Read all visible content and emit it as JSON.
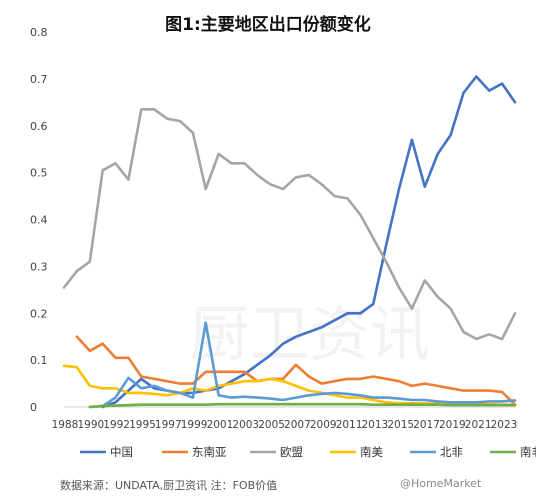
{
  "chart_data": {
    "type": "line",
    "title": "图1:主要地区出口份额变化",
    "ylim": [
      0,
      0.8
    ],
    "yticks": [
      "0",
      "0.1",
      "0.2",
      "0.3",
      "0.4",
      "0.5",
      "0.6",
      "0.7",
      "0.8"
    ],
    "xlim": [
      1988,
      2023
    ],
    "xticks": [
      "1988",
      "1990",
      "1992",
      "1995",
      "1997",
      "1999",
      "2001",
      "2003",
      "2005",
      "2007",
      "2009",
      "2011",
      "2013",
      "2015",
      "2017",
      "2019",
      "2021",
      "2023"
    ],
    "grid": false,
    "legend_position": "bottom",
    "series": [
      {
        "name": "中国",
        "color": "#4472C4",
        "points": [
          [
            1991,
            0.0
          ],
          [
            1992,
            0.01
          ],
          [
            1993,
            0.035
          ],
          [
            1994,
            0.06
          ],
          [
            1995,
            0.04
          ],
          [
            1996,
            0.035
          ],
          [
            1997,
            0.03
          ],
          [
            1998,
            0.03
          ],
          [
            1999,
            0.035
          ],
          [
            2000,
            0.04
          ],
          [
            2001,
            0.055
          ],
          [
            2002,
            0.07
          ],
          [
            2003,
            0.09
          ],
          [
            2004,
            0.11
          ],
          [
            2005,
            0.135
          ],
          [
            2006,
            0.15
          ],
          [
            2007,
            0.16
          ],
          [
            2008,
            0.17
          ],
          [
            2009,
            0.185
          ],
          [
            2010,
            0.2
          ],
          [
            2011,
            0.2
          ],
          [
            2012,
            0.22
          ],
          [
            2013,
            0.345
          ],
          [
            2014,
            0.465
          ],
          [
            2015,
            0.57
          ],
          [
            2016,
            0.47
          ],
          [
            2017,
            0.54
          ],
          [
            2018,
            0.58
          ],
          [
            2019,
            0.67
          ],
          [
            2020,
            0.705
          ],
          [
            2021,
            0.675
          ],
          [
            2022,
            0.69
          ],
          [
            2023,
            0.65
          ]
        ]
      },
      {
        "name": "东南亚",
        "color": "#ED7D31",
        "points": [
          [
            1989,
            0.15
          ],
          [
            1990,
            0.12
          ],
          [
            1991,
            0.135
          ],
          [
            1992,
            0.105
          ],
          [
            1993,
            0.105
          ],
          [
            1994,
            0.065
          ],
          [
            1995,
            0.06
          ],
          [
            1996,
            0.055
          ],
          [
            1997,
            0.05
          ],
          [
            1998,
            0.05
          ],
          [
            1999,
            0.075
          ],
          [
            2000,
            0.075
          ],
          [
            2001,
            0.075
          ],
          [
            2002,
            0.075
          ],
          [
            2003,
            0.055
          ],
          [
            2004,
            0.06
          ],
          [
            2005,
            0.06
          ],
          [
            2006,
            0.09
          ],
          [
            2007,
            0.065
          ],
          [
            2008,
            0.05
          ],
          [
            2009,
            0.055
          ],
          [
            2010,
            0.06
          ],
          [
            2011,
            0.06
          ],
          [
            2012,
            0.065
          ],
          [
            2013,
            0.06
          ],
          [
            2014,
            0.055
          ],
          [
            2015,
            0.045
          ],
          [
            2016,
            0.05
          ],
          [
            2017,
            0.045
          ],
          [
            2018,
            0.04
          ],
          [
            2019,
            0.035
          ],
          [
            2020,
            0.035
          ],
          [
            2021,
            0.035
          ],
          [
            2022,
            0.032
          ],
          [
            2023,
            0.005
          ]
        ]
      },
      {
        "name": "欧盟",
        "color": "#A5A5A5",
        "points": [
          [
            1988,
            0.255
          ],
          [
            1989,
            0.29
          ],
          [
            1990,
            0.31
          ],
          [
            1991,
            0.505
          ],
          [
            1992,
            0.52
          ],
          [
            1993,
            0.485
          ],
          [
            1994,
            0.635
          ],
          [
            1995,
            0.635
          ],
          [
            1996,
            0.615
          ],
          [
            1997,
            0.61
          ],
          [
            1998,
            0.585
          ],
          [
            1999,
            0.465
          ],
          [
            2000,
            0.54
          ],
          [
            2001,
            0.52
          ],
          [
            2002,
            0.52
          ],
          [
            2003,
            0.495
          ],
          [
            2004,
            0.475
          ],
          [
            2005,
            0.465
          ],
          [
            2006,
            0.49
          ],
          [
            2007,
            0.495
          ],
          [
            2008,
            0.475
          ],
          [
            2009,
            0.45
          ],
          [
            2010,
            0.445
          ],
          [
            2011,
            0.41
          ],
          [
            2012,
            0.36
          ],
          [
            2013,
            0.31
          ],
          [
            2014,
            0.255
          ],
          [
            2015,
            0.21
          ],
          [
            2016,
            0.27
          ],
          [
            2017,
            0.235
          ],
          [
            2018,
            0.21
          ],
          [
            2019,
            0.16
          ],
          [
            2020,
            0.145
          ],
          [
            2021,
            0.155
          ],
          [
            2022,
            0.145
          ],
          [
            2023,
            0.2
          ]
        ]
      },
      {
        "name": "南美",
        "color": "#FFC000",
        "points": [
          [
            1988,
            0.088
          ],
          [
            1989,
            0.085
          ],
          [
            1990,
            0.045
          ],
          [
            1991,
            0.04
          ],
          [
            1992,
            0.04
          ],
          [
            1993,
            0.03
          ],
          [
            1994,
            0.03
          ],
          [
            1995,
            0.028
          ],
          [
            1996,
            0.025
          ],
          [
            1997,
            0.03
          ],
          [
            1998,
            0.04
          ],
          [
            1999,
            0.035
          ],
          [
            2000,
            0.045
          ],
          [
            2001,
            0.05
          ],
          [
            2002,
            0.055
          ],
          [
            2003,
            0.055
          ],
          [
            2004,
            0.06
          ],
          [
            2005,
            0.055
          ],
          [
            2006,
            0.045
          ],
          [
            2007,
            0.035
          ],
          [
            2008,
            0.03
          ],
          [
            2009,
            0.025
          ],
          [
            2010,
            0.02
          ],
          [
            2011,
            0.02
          ],
          [
            2012,
            0.015
          ],
          [
            2013,
            0.01
          ],
          [
            2014,
            0.008
          ],
          [
            2015,
            0.008
          ],
          [
            2016,
            0.008
          ],
          [
            2017,
            0.007
          ],
          [
            2018,
            0.007
          ],
          [
            2019,
            0.007
          ],
          [
            2020,
            0.006
          ],
          [
            2021,
            0.006
          ],
          [
            2022,
            0.005
          ],
          [
            2023,
            0.005
          ]
        ]
      },
      {
        "name": "北非",
        "color": "#5B9BD5",
        "points": [
          [
            1990,
            0.0
          ],
          [
            1991,
            0.002
          ],
          [
            1992,
            0.02
          ],
          [
            1993,
            0.062
          ],
          [
            1994,
            0.04
          ],
          [
            1995,
            0.045
          ],
          [
            1996,
            0.035
          ],
          [
            1997,
            0.03
          ],
          [
            1998,
            0.02
          ],
          [
            1999,
            0.18
          ],
          [
            2000,
            0.025
          ],
          [
            2001,
            0.02
          ],
          [
            2002,
            0.022
          ],
          [
            2003,
            0.02
          ],
          [
            2004,
            0.018
          ],
          [
            2005,
            0.015
          ],
          [
            2006,
            0.02
          ],
          [
            2007,
            0.025
          ],
          [
            2008,
            0.028
          ],
          [
            2009,
            0.03
          ],
          [
            2010,
            0.028
          ],
          [
            2011,
            0.025
          ],
          [
            2012,
            0.02
          ],
          [
            2013,
            0.02
          ],
          [
            2014,
            0.018
          ],
          [
            2015,
            0.015
          ],
          [
            2016,
            0.015
          ],
          [
            2017,
            0.012
          ],
          [
            2018,
            0.01
          ],
          [
            2019,
            0.01
          ],
          [
            2020,
            0.01
          ],
          [
            2021,
            0.012
          ],
          [
            2022,
            0.012
          ],
          [
            2023,
            0.014
          ]
        ]
      },
      {
        "name": "南非",
        "color": "#70AD47",
        "points": [
          [
            1990,
            0.0
          ],
          [
            1991,
            0.002
          ],
          [
            1992,
            0.003
          ],
          [
            1993,
            0.004
          ],
          [
            1994,
            0.005
          ],
          [
            1995,
            0.005
          ],
          [
            1996,
            0.005
          ],
          [
            1997,
            0.005
          ],
          [
            1998,
            0.005
          ],
          [
            1999,
            0.005
          ],
          [
            2000,
            0.006
          ],
          [
            2001,
            0.006
          ],
          [
            2002,
            0.006
          ],
          [
            2003,
            0.006
          ],
          [
            2004,
            0.006
          ],
          [
            2005,
            0.006
          ],
          [
            2006,
            0.006
          ],
          [
            2007,
            0.006
          ],
          [
            2008,
            0.006
          ],
          [
            2009,
            0.006
          ],
          [
            2010,
            0.006
          ],
          [
            2011,
            0.006
          ],
          [
            2012,
            0.005
          ],
          [
            2013,
            0.005
          ],
          [
            2014,
            0.005
          ],
          [
            2015,
            0.005
          ],
          [
            2016,
            0.005
          ],
          [
            2017,
            0.005
          ],
          [
            2018,
            0.004
          ],
          [
            2019,
            0.004
          ],
          [
            2020,
            0.004
          ],
          [
            2021,
            0.004
          ],
          [
            2022,
            0.004
          ],
          [
            2023,
            0.004
          ]
        ]
      }
    ],
    "source": "数据来源：UNDATA,厨卫资讯 注：FOB价值",
    "watermark_text": "@HomeMarket",
    "background_watermark": "厨卫资讯"
  }
}
